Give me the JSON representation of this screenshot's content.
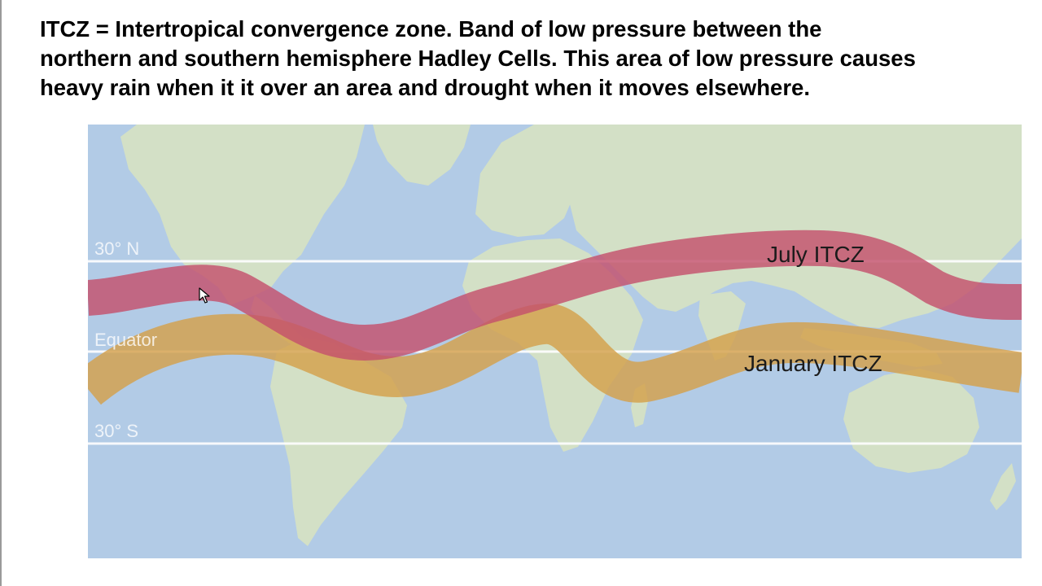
{
  "description": {
    "lines": [
      "ITCZ = Intertropical convergence zone. Band of low pressure between the",
      "northern and southern hemisphere Hadley Cells. This area of low pressure causes",
      "heavy rain when it it over an area and drought when it moves elsewhere."
    ]
  },
  "map": {
    "latitude_labels": {
      "north": "30° N",
      "equator": "Equator",
      "south": "30° S"
    },
    "bands": {
      "july": {
        "label": "July ITCZ",
        "color": "#c4506d"
      },
      "january": {
        "label": "January ITCZ",
        "color": "#d4a04a"
      }
    },
    "colors": {
      "ocean": "#b2cbe6",
      "land": "#d3e0c6",
      "lines": "#ffffff"
    }
  },
  "cursor": {
    "icon": "mouse-pointer-icon"
  }
}
